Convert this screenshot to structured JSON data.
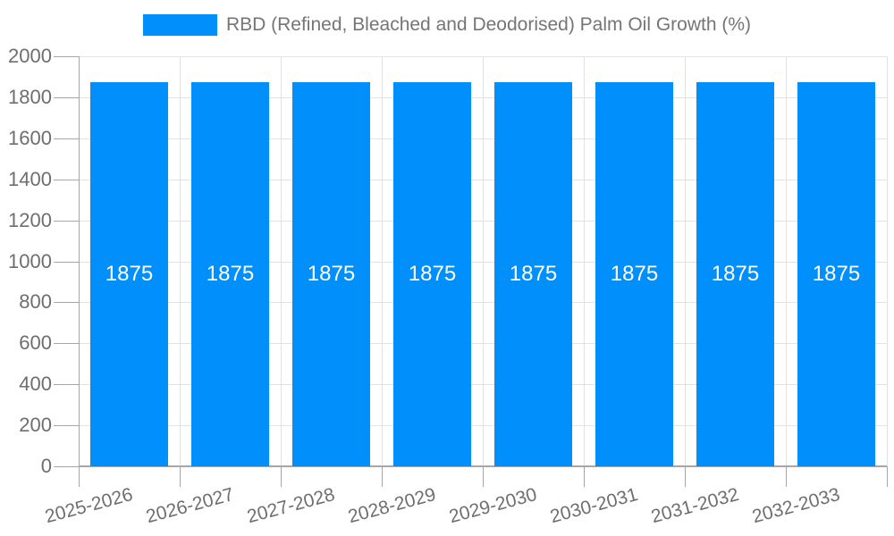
{
  "legend": {
    "label": "RBD (Refined, Bleached and Deodorised) Palm Oil Growth (%)"
  },
  "colors": {
    "bar": "#008FFB",
    "bar_label_text": "#FFFFFF",
    "axis_text": "#6E6E6E",
    "legend_text": "#757575",
    "gridline": "#E2E2E2",
    "axis_line": "#A6A6A6",
    "background": "#FFFFFF"
  },
  "chart_data": {
    "type": "bar",
    "title": "",
    "xlabel": "",
    "ylabel": "",
    "categories": [
      "2025-2026",
      "2026-2027",
      "2027-2028",
      "2028-2029",
      "2029-2030",
      "2030-2031",
      "2031-2032",
      "2032-2033"
    ],
    "series": [
      {
        "name": "RBD (Refined, Bleached and Deodorised) Palm Oil Growth (%)",
        "values": [
          1875,
          1875,
          1875,
          1875,
          1875,
          1875,
          1875,
          1875
        ]
      }
    ],
    "bar_labels": [
      "1875",
      "1875",
      "1875",
      "1875",
      "1875",
      "1875",
      "1875",
      "1875"
    ],
    "ylim": [
      0,
      2000
    ],
    "yticks": [
      0,
      200,
      400,
      600,
      800,
      1000,
      1200,
      1400,
      1600,
      1800,
      2000
    ],
    "grid": true,
    "legend_position": "top"
  }
}
